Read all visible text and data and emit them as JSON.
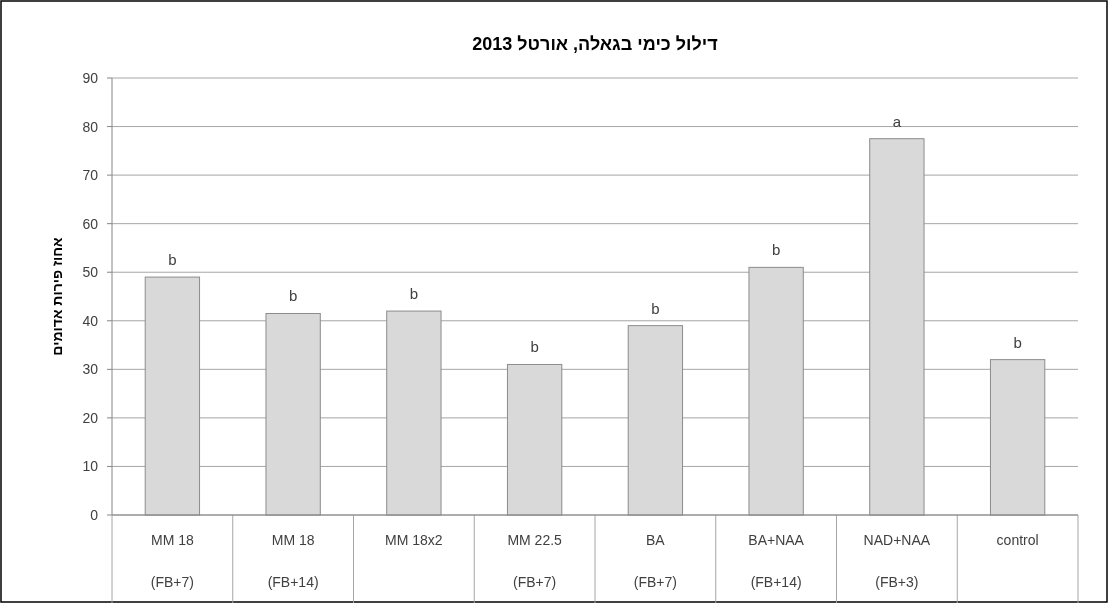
{
  "chart_data": {
    "type": "bar",
    "title": "דילול כימי בגאלה, אורטל 2013",
    "ylabel": "אחוז פירות אדומים",
    "categories": [
      "MM 18\n(FB+7)",
      "MM 18\n(FB+14)",
      "MM 18x2",
      "MM 22.5\n(FB+7)",
      "BA\n(FB+7)",
      "BA+NAA\n(FB+14)",
      "NAD+NAA\n(FB+3)",
      "control"
    ],
    "values": [
      49,
      41.5,
      42,
      31,
      39,
      51,
      77.5,
      32
    ],
    "color": "#d9d9d9",
    "ylim": [
      0,
      90
    ],
    "yticks": [
      0,
      10,
      20,
      30,
      40,
      50,
      60,
      70,
      80,
      90
    ],
    "grid": "y",
    "annotations": [
      {
        "text": "b",
        "x": "MM 18\n(FB+7)",
        "y": 49
      },
      {
        "text": "b",
        "x": "MM 18\n(FB+14)",
        "y": 41.5
      },
      {
        "text": "b",
        "x": "MM 18x2",
        "y": 42
      },
      {
        "text": "b",
        "x": "MM 22.5\n(FB+7)",
        "y": 31
      },
      {
        "text": "b",
        "x": "BA\n(FB+7)",
        "y": 39
      },
      {
        "text": "b",
        "x": "BA+NAA\n(FB+14)",
        "y": 51
      },
      {
        "text": "a",
        "x": "NAD+NAA\n(FB+3)",
        "y": 77.5
      },
      {
        "text": "b",
        "x": "control",
        "y": 32
      }
    ]
  }
}
